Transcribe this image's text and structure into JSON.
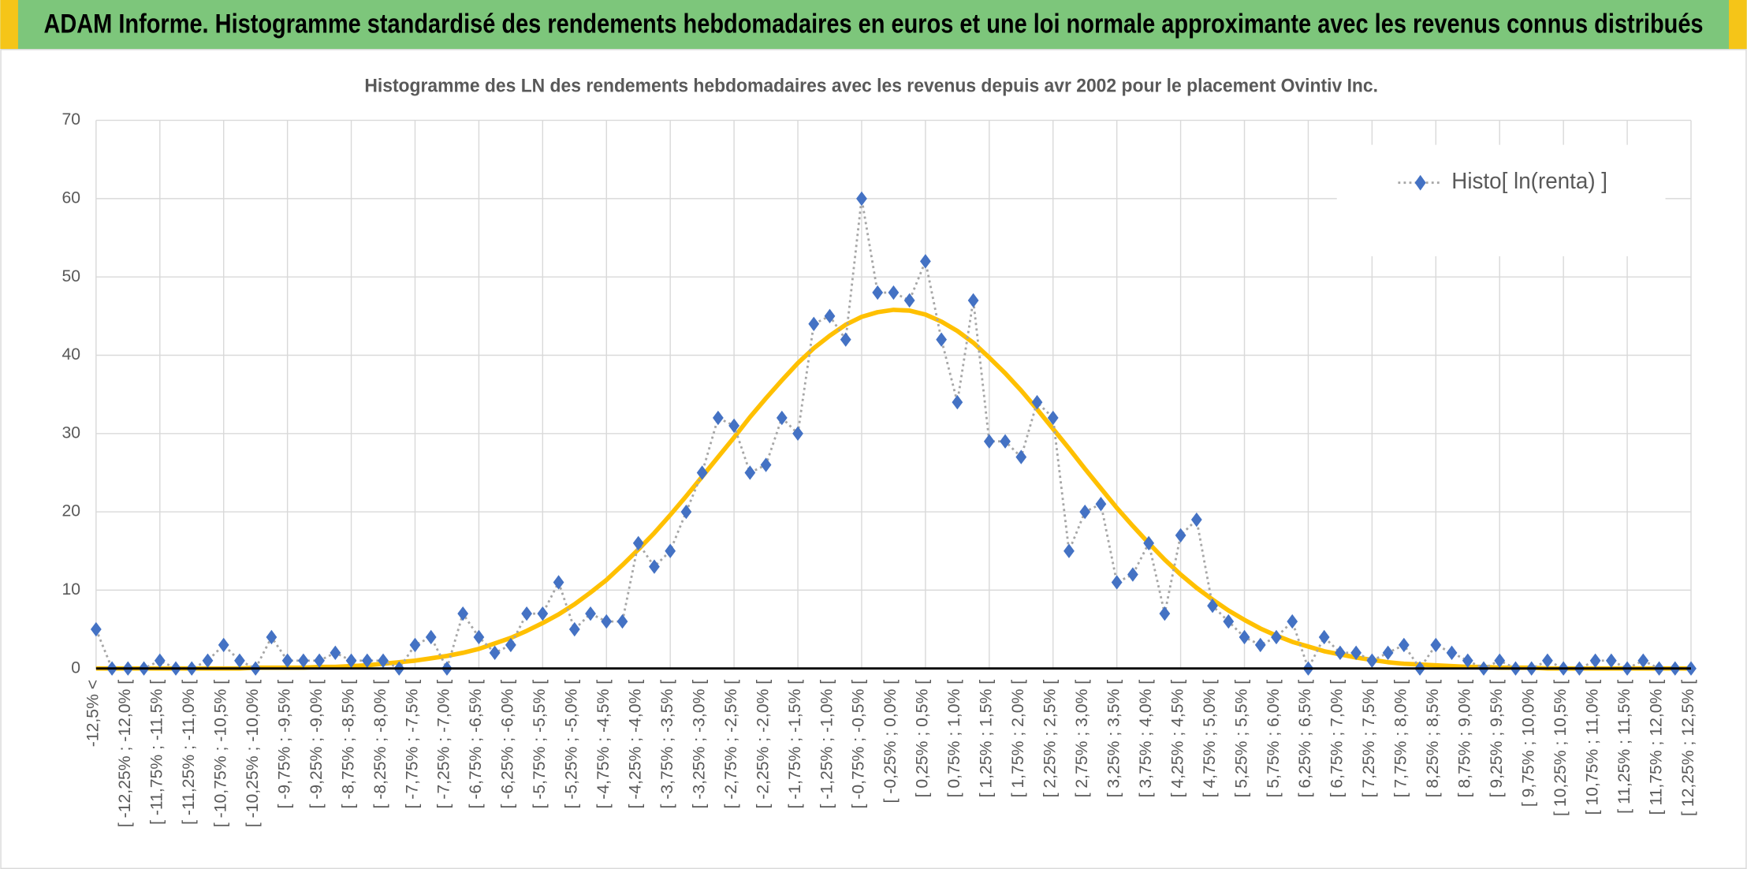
{
  "header": {
    "title": "ADAM Informe. Histogramme standardisé des rendements hebdomadaires en euros et une loi normale approximante avec les revenus connus distribués"
  },
  "chart_data": {
    "type": "line",
    "title": "Histogramme des LN des rendements hebdomadaires avec les revenus depuis avr 2002 pour le placement Ovintiv Inc.",
    "categories": [
      "-12,5% <",
      null,
      "[ -12,25% ; -12,0% [",
      null,
      "[ -11,75% ; -11,5% [",
      null,
      "[ -11,25% ; -11,0% [",
      null,
      "[ -10,75% ; -10,5% [",
      null,
      "[ -10,25% ; -10,0% [",
      null,
      "[ -9,75% ; -9,5% [",
      null,
      "[ -9,25% ; -9,0% [",
      null,
      "[ -8,75% ; -8,5% [",
      null,
      "[ -8,25% ; -8,0% [",
      null,
      "[ -7,75% ; -7,5% [",
      null,
      "[ -7,25% ; -7,0% [",
      null,
      "[ -6,75% ; -6,5% [",
      null,
      "[ -6,25% ; -6,0% [",
      null,
      "[ -5,75% ; -5,5% [",
      null,
      "[ -5,25% ; -5,0% [",
      null,
      "[ -4,75% ; -4,5% [",
      null,
      "[ -4,25% ; -4,0% [",
      null,
      "[ -3,75% ; -3,5% [",
      null,
      "[ -3,25% ; -3,0% [",
      null,
      "[ -2,75% ; -2,5% [",
      null,
      "[ -2,25% ; -2,0% [",
      null,
      "[ -1,75% ; -1,5% [",
      null,
      "[ -1,25% ; -1,0% [",
      null,
      "[ -0,75% ; -0,5% [",
      null,
      "[ -0,25% ; 0,0% [",
      null,
      "[ 0,25% ; 0,5% [",
      null,
      "[ 0,75% ; 1,0% [",
      null,
      "[ 1,25% ; 1,5% [",
      null,
      "[ 1,75% ; 2,0% [",
      null,
      "[ 2,25% ; 2,5% [",
      null,
      "[ 2,75% ; 3,0% [",
      null,
      "[ 3,25% ; 3,5% [",
      null,
      "[ 3,75% ; 4,0% [",
      null,
      "[ 4,25% ; 4,5% [",
      null,
      "[ 4,75% ; 5,0% [",
      null,
      "[ 5,25% ; 5,5% [",
      null,
      "[ 5,75% ; 6,0% [",
      null,
      "[ 6,25% ; 6,5% [",
      null,
      "[ 6,75% ; 7,0% [",
      null,
      "[ 7,25% ; 7,5% [",
      null,
      "[ 7,75% ; 8,0% [",
      null,
      "[ 8,25% ; 8,5% [",
      null,
      "[ 8,75% ; 9,0% [",
      null,
      "[ 9,25% ; 9,5% [",
      null,
      "[ 9,75% ; 10,0% [",
      null,
      "[ 10,25% ; 10,5% [",
      null,
      "[ 10,75% ; 11,0% [",
      null,
      "[ 11,25% ; 11,5% [",
      null,
      "[ 11,75% ; 12,0% [",
      null,
      "[ 12,25% ; 12,5% ["
    ],
    "series": [
      {
        "name": "Histo[ ln(renta) ]",
        "color": "#4472c4",
        "line_color": "#a6a6a6",
        "line_style": "dotted",
        "marker": "diamond",
        "values": [
          5,
          0,
          0,
          0,
          1,
          0,
          0,
          1,
          3,
          1,
          0,
          4,
          1,
          1,
          1,
          2,
          1,
          1,
          1,
          0,
          3,
          4,
          0,
          7,
          4,
          2,
          3,
          7,
          7,
          11,
          5,
          7,
          6,
          6,
          16,
          13,
          15,
          20,
          25,
          32,
          31,
          25,
          26,
          32,
          30,
          44,
          45,
          42,
          60,
          48,
          48,
          47,
          52,
          42,
          34,
          47,
          29,
          29,
          27,
          34,
          32,
          15,
          20,
          21,
          11,
          12,
          16,
          7,
          17,
          19,
          8,
          6,
          4,
          3,
          4,
          6,
          0,
          4,
          2,
          2,
          1,
          2,
          3,
          0,
          3,
          2,
          1,
          0,
          1,
          0,
          0,
          1,
          0,
          0,
          1,
          1,
          0,
          1,
          0,
          0,
          0
        ]
      },
      {
        "color": "#ffc000",
        "line_style": "solid",
        "marker": "none",
        "values": [
          0,
          0,
          0,
          0,
          0,
          0,
          0,
          0,
          0,
          0,
          0.1,
          0.1,
          0.1,
          0.1,
          0.2,
          0.2,
          0.3,
          0.4,
          0.6,
          0.8,
          1.0,
          1.3,
          1.6,
          2.0,
          2.5,
          3.2,
          3.9,
          4.8,
          5.8,
          6.9,
          8.2,
          9.7,
          11.3,
          13.2,
          15.2,
          17.3,
          19.6,
          22.0,
          24.5,
          27.0,
          29.5,
          32.1,
          34.5,
          36.8,
          39.0,
          40.9,
          42.5,
          43.9,
          44.9,
          45.5,
          45.8,
          45.7,
          45.2,
          44.3,
          43.1,
          41.6,
          39.7,
          37.7,
          35.5,
          33.1,
          30.6,
          28.1,
          25.5,
          23.0,
          20.5,
          18.2,
          16.0,
          13.9,
          12.0,
          10.3,
          8.8,
          7.4,
          6.2,
          5.1,
          4.2,
          3.4,
          2.8,
          2.2,
          1.8,
          1.4,
          1.1,
          0.8,
          0.6,
          0.5,
          0.4,
          0.3,
          0.2,
          0.2,
          0.1,
          0.1,
          0.1,
          0,
          0,
          0,
          0,
          0,
          0,
          0,
          0,
          0,
          0
        ]
      }
    ],
    "ylim": [
      0,
      70
    ],
    "yticks": [
      0,
      10,
      20,
      30,
      40,
      50,
      60,
      70
    ],
    "grid": true,
    "legend": "upper right"
  }
}
